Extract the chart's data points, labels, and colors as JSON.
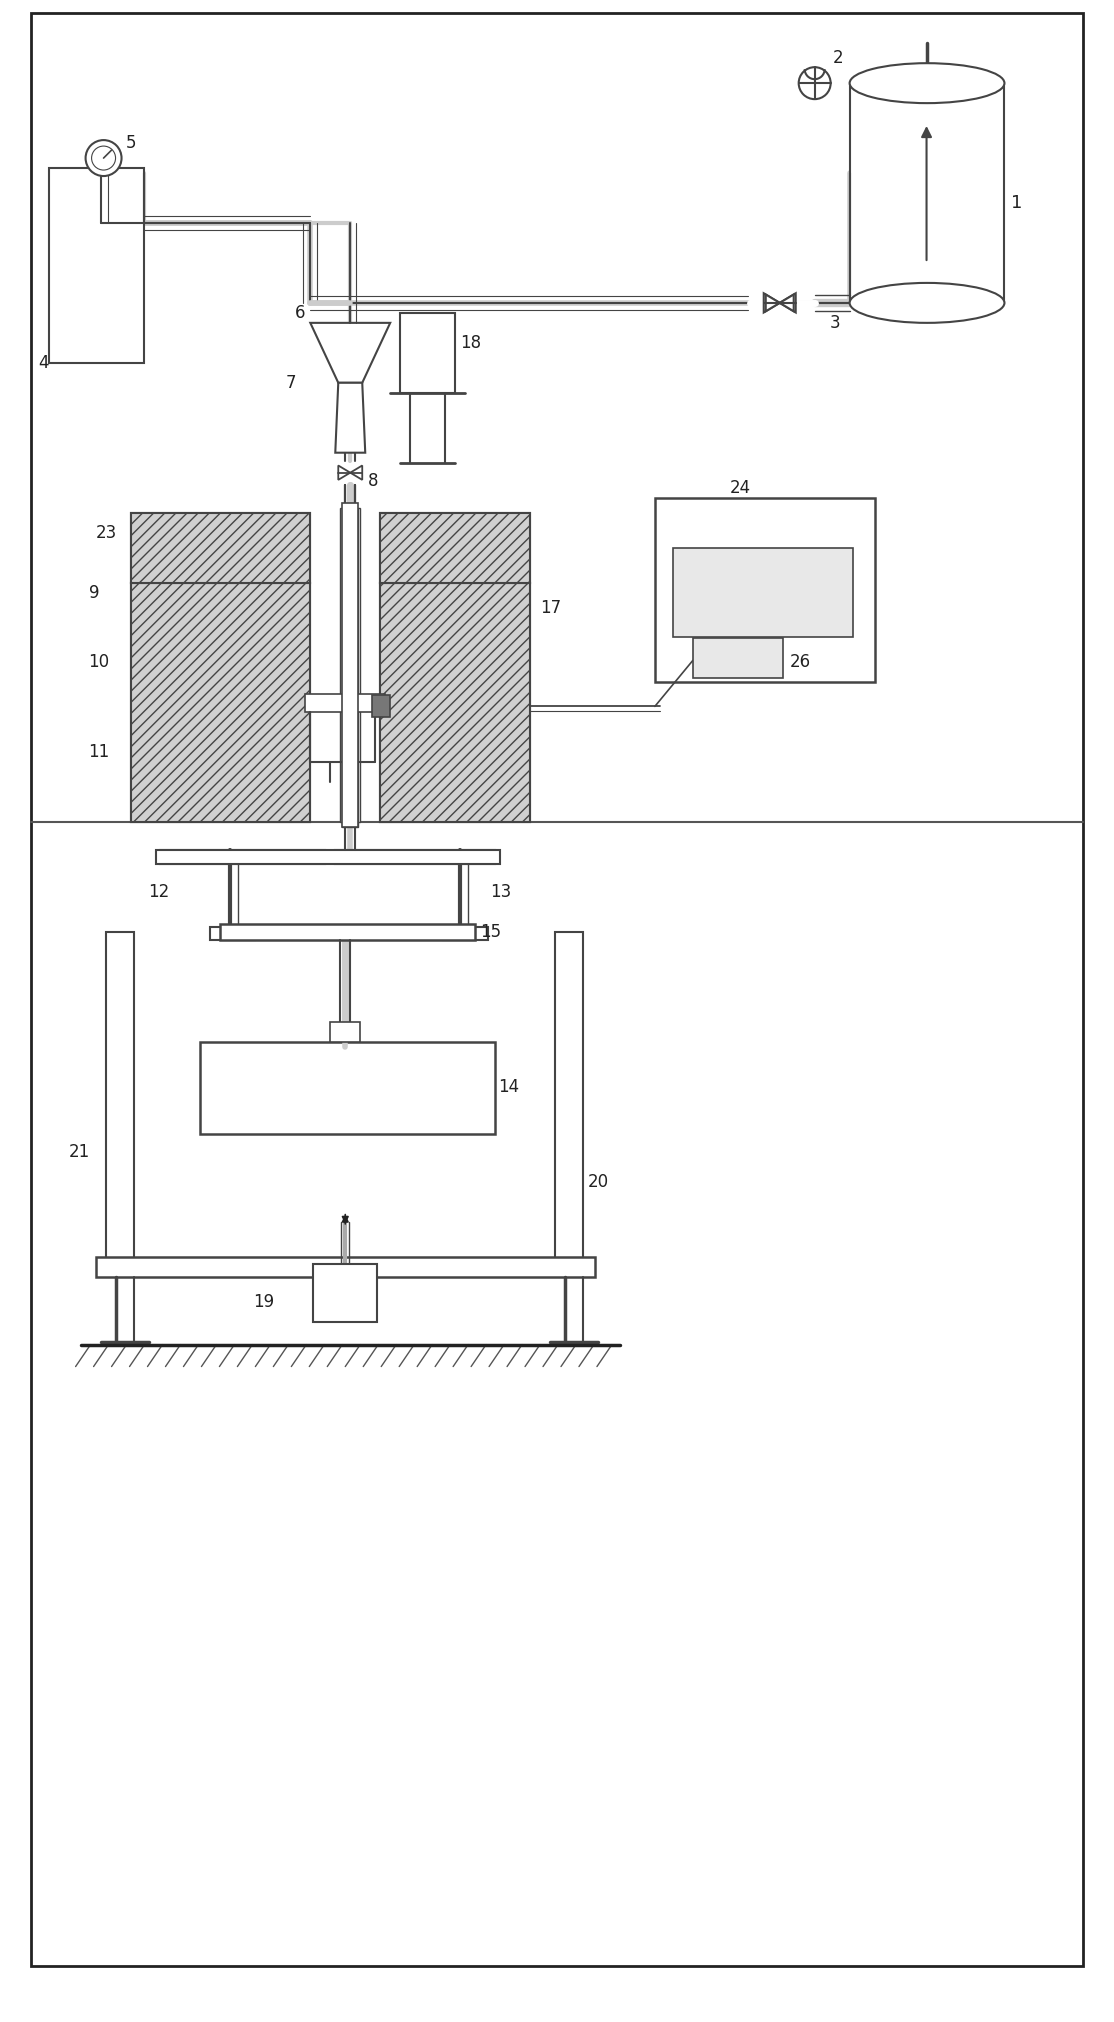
{
  "bg_color": "#ffffff",
  "lc": "#444444",
  "lc_dark": "#222222",
  "fig_w": 11.14,
  "fig_h": 20.22,
  "dpi": 100
}
